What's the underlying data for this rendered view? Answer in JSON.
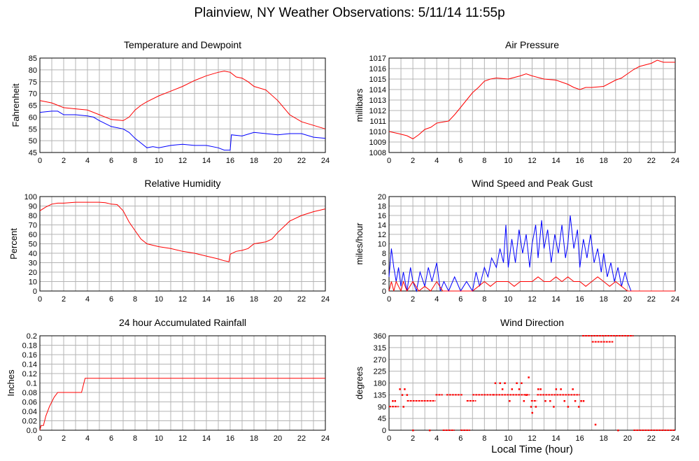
{
  "title": "Plainview, NY Weather Observations: 5/11/14 11:55p",
  "common_xlabel": "Local Time (hour)",
  "colors": {
    "red": "#ff0000",
    "blue": "#0000ff",
    "grid": "#b4b4b4"
  },
  "chart_data": [
    {
      "type": "line",
      "title": "Temperature and Dewpoint",
      "xlabel": "",
      "ylabel": "Fahrenheit",
      "xlim": [
        0,
        24
      ],
      "ylim": [
        45,
        85
      ],
      "xticks": [
        0,
        2,
        4,
        6,
        8,
        10,
        12,
        14,
        16,
        18,
        20,
        22,
        24
      ],
      "yticks": [
        45,
        50,
        55,
        60,
        65,
        70,
        75,
        80,
        85
      ],
      "grid": true,
      "series": [
        {
          "color": "#ff0000",
          "x": [
            0,
            1,
            2,
            3,
            4,
            5,
            6,
            7,
            7.5,
            8,
            8.5,
            9,
            10,
            11,
            12,
            13,
            14,
            15,
            15.5,
            16,
            16.5,
            17,
            17.5,
            18,
            19,
            20,
            21,
            22,
            23,
            24
          ],
          "y": [
            67,
            66,
            64,
            63.5,
            63,
            61,
            59,
            58.5,
            60,
            63,
            65,
            66.5,
            69,
            71,
            73,
            75.5,
            77.5,
            79,
            79.5,
            79,
            77,
            76.5,
            75,
            73,
            71.5,
            67,
            61,
            58,
            56.5,
            55
          ]
        },
        {
          "color": "#0000ff",
          "x": [
            0,
            1,
            1.5,
            2,
            3,
            4,
            4.5,
            5,
            6,
            7,
            7.5,
            8,
            8.5,
            9,
            9.5,
            10,
            11,
            12,
            13,
            14,
            15,
            15.5,
            16,
            16.1,
            17,
            18,
            19,
            20,
            21,
            22,
            23,
            24
          ],
          "y": [
            62,
            62.5,
            62.5,
            61,
            61,
            60.5,
            60,
            58.5,
            56,
            55,
            53.5,
            51,
            49,
            47,
            47.5,
            47,
            48,
            48.5,
            48,
            48,
            47,
            46,
            46,
            52.5,
            52,
            53.5,
            53,
            52.5,
            53,
            53,
            51.5,
            51
          ]
        }
      ]
    },
    {
      "type": "line",
      "title": "Air Pressure",
      "xlabel": "",
      "ylabel": "millibars",
      "xlim": [
        0,
        24
      ],
      "ylim": [
        1008,
        1017
      ],
      "xticks": [
        0,
        2,
        4,
        6,
        8,
        10,
        12,
        14,
        16,
        18,
        20,
        22,
        24
      ],
      "yticks": [
        1008,
        1009,
        1010,
        1011,
        1012,
        1013,
        1014,
        1015,
        1016,
        1017
      ],
      "grid": true,
      "series": [
        {
          "color": "#ff0000",
          "x": [
            0,
            0.8,
            1.5,
            2,
            2.5,
            3,
            3.5,
            4,
            5,
            5.5,
            6,
            6.5,
            7,
            7.5,
            8,
            8.5,
            9,
            10,
            11,
            11.5,
            12,
            13,
            14,
            15,
            15.5,
            16,
            16.5,
            17,
            18,
            19,
            19.5,
            20,
            20.5,
            21,
            22,
            22.5,
            23,
            24
          ],
          "y": [
            1010,
            1009.8,
            1009.6,
            1009.3,
            1009.7,
            1010.2,
            1010.4,
            1010.8,
            1011,
            1011.6,
            1012.3,
            1013,
            1013.7,
            1014.2,
            1014.8,
            1015,
            1015.1,
            1015,
            1015.3,
            1015.5,
            1015.3,
            1015,
            1014.9,
            1014.5,
            1014.2,
            1014,
            1014.2,
            1014.2,
            1014.3,
            1014.9,
            1015.1,
            1015.5,
            1015.9,
            1016.2,
            1016.5,
            1016.8,
            1016.6,
            1016.6
          ]
        }
      ]
    },
    {
      "type": "line",
      "title": "Relative Humidity",
      "xlabel": "",
      "ylabel": "Percent",
      "xlim": [
        0,
        24
      ],
      "ylim": [
        0,
        100
      ],
      "xticks": [
        0,
        2,
        4,
        6,
        8,
        10,
        12,
        14,
        16,
        18,
        20,
        22,
        24
      ],
      "yticks": [
        0,
        10,
        20,
        30,
        40,
        50,
        60,
        70,
        80,
        90,
        100
      ],
      "grid": true,
      "series": [
        {
          "color": "#ff0000",
          "x": [
            0,
            0.5,
            1,
            1.5,
            2,
            3,
            4,
            5,
            5.5,
            6,
            6.5,
            7,
            7.5,
            8,
            8.5,
            9,
            10,
            11,
            12,
            13,
            14,
            15,
            15.5,
            15.9,
            16,
            16.5,
            17,
            17.5,
            18,
            19,
            19.5,
            20,
            21,
            22,
            23,
            24
          ],
          "y": [
            85,
            89,
            92,
            93,
            93,
            94,
            94,
            94,
            93.5,
            92,
            91.5,
            85,
            73,
            64,
            55,
            50,
            47,
            45,
            42,
            40,
            37,
            34,
            32,
            31,
            39,
            42,
            43,
            45,
            50,
            52,
            55,
            62,
            74,
            80,
            84,
            87
          ]
        }
      ]
    },
    {
      "type": "line",
      "title": "Wind Speed and Peak Gust",
      "xlabel": "",
      "ylabel": "miles/hour",
      "xlim": [
        0,
        24
      ],
      "ylim": [
        0,
        20
      ],
      "xticks": [
        0,
        2,
        4,
        6,
        8,
        10,
        12,
        14,
        16,
        18,
        20,
        22,
        24
      ],
      "yticks": [
        0,
        2,
        4,
        6,
        8,
        10,
        12,
        14,
        16,
        18,
        20
      ],
      "grid": true,
      "series": [
        {
          "color": "#0000ff",
          "x": [
            0,
            0.2,
            0.4,
            0.6,
            0.8,
            1,
            1.2,
            1.5,
            1.8,
            2,
            2.3,
            2.6,
            3,
            3.3,
            3.6,
            4,
            4.3,
            4.6,
            5,
            5.5,
            6,
            6.5,
            7,
            7.3,
            7.6,
            8,
            8.3,
            8.6,
            9,
            9.3,
            9.6,
            9.8,
            10,
            10.3,
            10.6,
            10.9,
            11.2,
            11.5,
            11.8,
            12,
            12.3,
            12.5,
            12.8,
            13,
            13.3,
            13.6,
            13.9,
            14.2,
            14.5,
            14.8,
            15,
            15.2,
            15.5,
            15.8,
            16,
            16.3,
            16.6,
            16.9,
            17.2,
            17.5,
            17.8,
            18,
            18.3,
            18.6,
            18.9,
            19.2,
            19.5,
            19.8,
            20,
            20.3,
            20.5,
            21,
            22,
            23,
            24
          ],
          "y": [
            3,
            9,
            5,
            2,
            5,
            1,
            4,
            0,
            5,
            2,
            0,
            4,
            1,
            5,
            2,
            6,
            0,
            2,
            0,
            3,
            0,
            2,
            0,
            4,
            1,
            5,
            3,
            7,
            5,
            9,
            6,
            14,
            5,
            11,
            6,
            13,
            8,
            12,
            5,
            10,
            14,
            7,
            15,
            9,
            13,
            6,
            12,
            8,
            14,
            7,
            10,
            16,
            9,
            13,
            5,
            11,
            7,
            12,
            6,
            9,
            4,
            8,
            3,
            6,
            2,
            5,
            1,
            4,
            2,
            0,
            0,
            0,
            0,
            0,
            0
          ]
        },
        {
          "color": "#ff0000",
          "x": [
            0,
            0.2,
            0.4,
            0.6,
            0.8,
            1,
            1.2,
            1.5,
            2,
            2.5,
            3,
            3.5,
            4,
            4.5,
            5,
            6,
            7,
            7.5,
            8,
            8.5,
            9,
            9.5,
            10,
            10.5,
            11,
            11.5,
            12,
            12.5,
            13,
            13.5,
            14,
            14.5,
            15,
            15.5,
            16,
            16.5,
            17,
            17.5,
            18,
            18.5,
            19,
            19.5,
            20,
            20.5,
            21,
            24
          ],
          "y": [
            0,
            2,
            0,
            2,
            1,
            0,
            2,
            0,
            2,
            0,
            1,
            0,
            2,
            0,
            0,
            0,
            0,
            1,
            2,
            1,
            2,
            2,
            2,
            1,
            2,
            2,
            2,
            3,
            2,
            2,
            3,
            2,
            3,
            2,
            2,
            1,
            2,
            3,
            2,
            1,
            2,
            1,
            0,
            0,
            0,
            0
          ]
        }
      ]
    },
    {
      "type": "line",
      "title": "24 hour Accumulated Rainfall",
      "xlabel": "",
      "ylabel": "Inches",
      "xlim": [
        0,
        24
      ],
      "ylim": [
        0,
        0.2
      ],
      "xticks": [
        0,
        2,
        4,
        6,
        8,
        10,
        12,
        14,
        16,
        18,
        20,
        22,
        24
      ],
      "yticks": [
        0,
        0.02,
        0.04,
        0.06,
        0.08,
        0.1,
        0.12,
        0.14,
        0.16,
        0.18,
        0.2
      ],
      "ytick_labels": [
        "0.0",
        "0.02",
        "0.04",
        "0.06",
        "0.08",
        "0.1",
        "0.12",
        "0.14",
        "0.16",
        "0.18",
        "0.2"
      ],
      "grid": true,
      "series": [
        {
          "color": "#ff0000",
          "x": [
            0,
            0.1,
            0.3,
            0.5,
            0.8,
            1.2,
            1.5,
            2,
            3,
            3.5,
            3.8,
            4,
            24
          ],
          "y": [
            0,
            0.01,
            0.01,
            0.03,
            0.05,
            0.07,
            0.08,
            0.08,
            0.08,
            0.08,
            0.11,
            0.11,
            0.11
          ]
        }
      ]
    },
    {
      "type": "scatter",
      "title": "Wind Direction",
      "xlabel": "Local Time (hour)",
      "ylabel": "degrees",
      "xlim": [
        0,
        24
      ],
      "ylim": [
        0,
        360
      ],
      "xticks": [
        0,
        2,
        4,
        6,
        8,
        10,
        12,
        14,
        16,
        18,
        20,
        22,
        24
      ],
      "yticks": [
        0,
        45,
        90,
        135,
        180,
        225,
        270,
        315,
        360
      ],
      "grid": true,
      "series": [
        {
          "color": "#ff0000",
          "segments": [
            [
              0,
              90,
              0.8,
              90
            ],
            [
              1.5,
              112,
              3.9,
              112
            ],
            [
              3.9,
              135,
              4.5,
              135
            ],
            [
              4.8,
              135,
              6.2,
              135
            ],
            [
              6.5,
              112,
              7.3,
              112
            ],
            [
              7,
              135,
              8.8,
              135
            ],
            [
              8.7,
              135,
              11.8,
              135
            ],
            [
              11.9,
              112,
              12.4,
              112
            ],
            [
              12.4,
              135,
              16,
              135
            ],
            [
              16.2,
              360,
              20.5,
              360
            ],
            [
              17,
              337,
              18.8,
              337
            ],
            [
              20.5,
              0,
              24,
              0
            ],
            [
              4.5,
              0,
              5.5,
              0
            ],
            [
              6,
              0,
              6.8,
              0
            ]
          ],
          "points": [
            [
              0.3,
              112
            ],
            [
              0.5,
              112
            ],
            [
              0.9,
              157
            ],
            [
              1.1,
              135
            ],
            [
              1.2,
              90
            ],
            [
              1.3,
              157
            ],
            [
              1.5,
              135
            ],
            [
              2,
              0
            ],
            [
              3.4,
              0
            ],
            [
              8.9,
              180
            ],
            [
              9.3,
              180
            ],
            [
              9.5,
              157
            ],
            [
              9.7,
              180
            ],
            [
              10.1,
              112
            ],
            [
              10.3,
              157
            ],
            [
              10.7,
              180
            ],
            [
              10.9,
              157
            ],
            [
              11.1,
              180
            ],
            [
              11.3,
              112
            ],
            [
              11.5,
              135
            ],
            [
              11.7,
              202
            ],
            [
              11.9,
              90
            ],
            [
              12,
              67
            ],
            [
              12.3,
              90
            ],
            [
              12.5,
              157
            ],
            [
              12.7,
              157
            ],
            [
              13.1,
              112
            ],
            [
              13.5,
              112
            ],
            [
              13.8,
              90
            ],
            [
              14,
              157
            ],
            [
              14.4,
              157
            ],
            [
              14.7,
              112
            ],
            [
              15,
              90
            ],
            [
              15.4,
              157
            ],
            [
              15.6,
              112
            ],
            [
              15.9,
              90
            ],
            [
              16.1,
              112
            ],
            [
              16.3,
              112
            ],
            [
              17.3,
              22
            ],
            [
              19.2,
              0
            ]
          ]
        }
      ]
    }
  ]
}
